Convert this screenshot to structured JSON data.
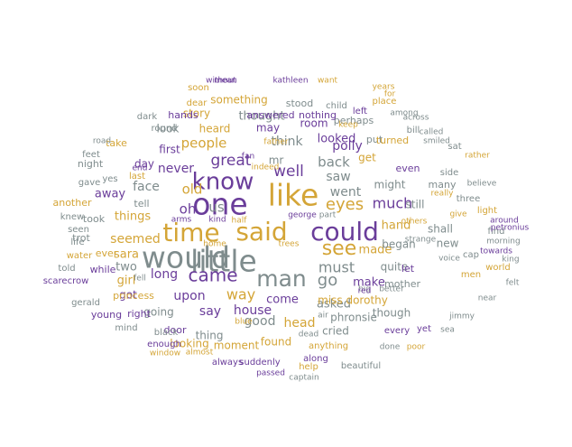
{
  "palette": {
    "purple": "#6a3d9a",
    "gold": "#d4a537",
    "gray": "#7f8c8d"
  },
  "words": [
    {
      "text": "would",
      "color": "gray"
    },
    {
      "text": "little",
      "color": "gray"
    },
    {
      "text": "one",
      "color": "purple"
    },
    {
      "text": "like",
      "color": "gold"
    },
    {
      "text": "time",
      "color": "gold"
    },
    {
      "text": "said",
      "color": "gold"
    },
    {
      "text": "could",
      "color": "purple"
    },
    {
      "text": "know",
      "color": "purple"
    },
    {
      "text": "man",
      "color": "gray"
    },
    {
      "text": "see",
      "color": "gold"
    },
    {
      "text": "came",
      "color": "purple"
    },
    {
      "text": "eyes",
      "color": "gold"
    },
    {
      "text": "go",
      "color": "gray"
    },
    {
      "text": "much",
      "color": "purple"
    },
    {
      "text": "must",
      "color": "gray"
    },
    {
      "text": "great",
      "color": "purple"
    },
    {
      "text": "well",
      "color": "purple"
    },
    {
      "text": "way",
      "color": "gold"
    },
    {
      "text": "us",
      "color": "gray"
    },
    {
      "text": "oh",
      "color": "purple"
    },
    {
      "text": "old",
      "color": "gold"
    },
    {
      "text": "people",
      "color": "gold"
    },
    {
      "text": "back",
      "color": "gray"
    },
    {
      "text": "saw",
      "color": "gray"
    },
    {
      "text": "went",
      "color": "gray"
    },
    {
      "text": "polly",
      "color": "purple"
    },
    {
      "text": "upon",
      "color": "purple"
    },
    {
      "text": "long",
      "color": "purple"
    },
    {
      "text": "say",
      "color": "purple"
    },
    {
      "text": "house",
      "color": "purple"
    },
    {
      "text": "seemed",
      "color": "gold"
    },
    {
      "text": "things",
      "color": "gold"
    },
    {
      "text": "come",
      "color": "purple"
    },
    {
      "text": "made",
      "color": "gold"
    },
    {
      "text": "hand",
      "color": "gold"
    },
    {
      "text": "think",
      "color": "gray"
    },
    {
      "text": "looked",
      "color": "purple"
    },
    {
      "text": "make",
      "color": "purple"
    },
    {
      "text": "asked",
      "color": "gray"
    },
    {
      "text": "good",
      "color": "gray"
    },
    {
      "text": "head",
      "color": "gold"
    },
    {
      "text": "face",
      "color": "gray"
    },
    {
      "text": "never",
      "color": "purple"
    },
    {
      "text": "sara",
      "color": "gold"
    },
    {
      "text": "two",
      "color": "gray"
    },
    {
      "text": "girl",
      "color": "gold"
    },
    {
      "text": "away",
      "color": "purple"
    },
    {
      "text": "thought",
      "color": "gray"
    },
    {
      "text": "may",
      "color": "purple"
    },
    {
      "text": "heard",
      "color": "gold"
    },
    {
      "text": "first",
      "color": "purple"
    },
    {
      "text": "mr",
      "color": "gray"
    },
    {
      "text": "get",
      "color": "gold"
    },
    {
      "text": "might",
      "color": "gray"
    },
    {
      "text": "still",
      "color": "gray"
    },
    {
      "text": "quite",
      "color": "gray"
    },
    {
      "text": "began",
      "color": "gray"
    },
    {
      "text": "let",
      "color": "purple"
    },
    {
      "text": "new",
      "color": "gray"
    },
    {
      "text": "shall",
      "color": "gray"
    },
    {
      "text": "miss dorothy",
      "color": "gold"
    },
    {
      "text": "phronsie",
      "color": "gray"
    },
    {
      "text": "found",
      "color": "gold"
    },
    {
      "text": "cried",
      "color": "gray"
    },
    {
      "text": "though",
      "color": "gray"
    },
    {
      "text": "mother",
      "color": "gray"
    },
    {
      "text": "going",
      "color": "gray"
    },
    {
      "text": "got",
      "color": "purple"
    },
    {
      "text": "thing",
      "color": "gray"
    },
    {
      "text": "moment",
      "color": "gold"
    },
    {
      "text": "door",
      "color": "purple"
    },
    {
      "text": "looking",
      "color": "gold"
    },
    {
      "text": "room",
      "color": "purple"
    },
    {
      "text": "perhaps",
      "color": "gray"
    },
    {
      "text": "put",
      "color": "gray"
    },
    {
      "text": "day",
      "color": "purple"
    },
    {
      "text": "night",
      "color": "gray"
    },
    {
      "text": "tell",
      "color": "gray"
    },
    {
      "text": "took",
      "color": "gray"
    },
    {
      "text": "trot",
      "color": "gray"
    },
    {
      "text": "while",
      "color": "purple"
    },
    {
      "text": "ever",
      "color": "gold"
    },
    {
      "text": "another",
      "color": "gold"
    },
    {
      "text": "princess",
      "color": "gold"
    },
    {
      "text": "young",
      "color": "purple"
    },
    {
      "text": "right",
      "color": "purple"
    },
    {
      "text": "look",
      "color": "gray"
    },
    {
      "text": "take",
      "color": "gold"
    },
    {
      "text": "story",
      "color": "gold"
    },
    {
      "text": "something",
      "color": "gold"
    },
    {
      "text": "answered",
      "color": "purple"
    },
    {
      "text": "nothing",
      "color": "purple"
    },
    {
      "text": "turned",
      "color": "gold"
    },
    {
      "text": "even",
      "color": "purple"
    },
    {
      "text": "many",
      "color": "gray"
    },
    {
      "text": "always",
      "color": "purple"
    },
    {
      "text": "suddenly",
      "color": "purple"
    },
    {
      "text": "along",
      "color": "purple"
    },
    {
      "text": "anything",
      "color": "gold"
    },
    {
      "text": "every",
      "color": "purple"
    },
    {
      "text": "yet",
      "color": "purple"
    },
    {
      "text": "hands",
      "color": "purple"
    },
    {
      "text": "round",
      "color": "gray"
    },
    {
      "text": "dark",
      "color": "gray"
    },
    {
      "text": "dear",
      "color": "gold"
    },
    {
      "text": "stood",
      "color": "gray"
    },
    {
      "text": "child",
      "color": "gray"
    },
    {
      "text": "left",
      "color": "purple"
    },
    {
      "text": "place",
      "color": "gold"
    },
    {
      "text": "among",
      "color": "gray"
    },
    {
      "text": "bill",
      "color": "gray"
    },
    {
      "text": "sat",
      "color": "gray"
    },
    {
      "text": "side",
      "color": "gray"
    },
    {
      "text": "three",
      "color": "gray"
    },
    {
      "text": "light",
      "color": "gold"
    },
    {
      "text": "find",
      "color": "gray"
    },
    {
      "text": "cap",
      "color": "gray"
    },
    {
      "text": "world",
      "color": "gold"
    },
    {
      "text": "men",
      "color": "gold"
    },
    {
      "text": "jimmy",
      "color": "gray"
    },
    {
      "text": "gerald",
      "color": "gray"
    },
    {
      "text": "black",
      "color": "gray"
    },
    {
      "text": "enough",
      "color": "purple"
    },
    {
      "text": "mind",
      "color": "gray"
    },
    {
      "text": "yes",
      "color": "gray"
    },
    {
      "text": "last",
      "color": "gold"
    },
    {
      "text": "road",
      "color": "gray"
    },
    {
      "text": "feet",
      "color": "gray"
    },
    {
      "text": "gave",
      "color": "gray"
    },
    {
      "text": "knew",
      "color": "gray"
    },
    {
      "text": "seen",
      "color": "gray"
    },
    {
      "text": "life",
      "color": "gray"
    },
    {
      "text": "water",
      "color": "gold"
    },
    {
      "text": "told",
      "color": "gray"
    },
    {
      "text": "scarecrow",
      "color": "purple"
    },
    {
      "text": "done",
      "color": "gray"
    },
    {
      "text": "poor",
      "color": "gold"
    },
    {
      "text": "beautiful",
      "color": "gray"
    },
    {
      "text": "help",
      "color": "gold"
    },
    {
      "text": "passed",
      "color": "purple"
    },
    {
      "text": "captain",
      "color": "gray"
    },
    {
      "text": "window",
      "color": "gold"
    },
    {
      "text": "almost",
      "color": "gold"
    },
    {
      "text": "soon",
      "color": "gold"
    },
    {
      "text": "without",
      "color": "purple"
    },
    {
      "text": "mean",
      "color": "purple"
    },
    {
      "text": "kathleen",
      "color": "purple"
    },
    {
      "text": "want",
      "color": "gold"
    },
    {
      "text": "years",
      "color": "gold"
    },
    {
      "text": "for",
      "color": "gold"
    },
    {
      "text": "across",
      "color": "gray"
    },
    {
      "text": "called",
      "color": "gray"
    },
    {
      "text": "smiled",
      "color": "gray"
    },
    {
      "text": "rather",
      "color": "gold"
    },
    {
      "text": "believe",
      "color": "gray"
    },
    {
      "text": "around",
      "color": "purple"
    },
    {
      "text": "petronius",
      "color": "purple"
    },
    {
      "text": "morning",
      "color": "gray"
    },
    {
      "text": "towards",
      "color": "purple"
    },
    {
      "text": "king",
      "color": "gray"
    },
    {
      "text": "felt",
      "color": "gray"
    },
    {
      "text": "near",
      "color": "gray"
    },
    {
      "text": "sea",
      "color": "gray"
    },
    {
      "text": "voice",
      "color": "gray"
    },
    {
      "text": "better",
      "color": "gray"
    },
    {
      "text": "strange",
      "color": "gray"
    },
    {
      "text": "give",
      "color": "gold"
    },
    {
      "text": "others",
      "color": "gold"
    },
    {
      "text": "really",
      "color": "gold"
    },
    {
      "text": "big",
      "color": "gray"
    },
    {
      "text": "george",
      "color": "purple"
    },
    {
      "text": "part",
      "color": "gray"
    },
    {
      "text": "kind",
      "color": "purple"
    },
    {
      "text": "half",
      "color": "gold"
    },
    {
      "text": "home",
      "color": "gold"
    },
    {
      "text": "trees",
      "color": "gold"
    },
    {
      "text": "blue",
      "color": "gold"
    },
    {
      "text": "dead",
      "color": "gray"
    },
    {
      "text": "air",
      "color": "gray"
    },
    {
      "text": "red",
      "color": "purple"
    },
    {
      "text": "end",
      "color": "purple"
    },
    {
      "text": "fell",
      "color": "gray"
    },
    {
      "text": "father",
      "color": "gold"
    },
    {
      "text": "indeed",
      "color": "gold"
    },
    {
      "text": "fan",
      "color": "purple"
    },
    {
      "text": "keep",
      "color": "gold"
    },
    {
      "text": "arms",
      "color": "purple"
    },
    {
      "text": "wish",
      "color": "gray"
    },
    {
      "text": "lay",
      "color": "purple"
    },
    {
      "text": "work",
      "color": "gray"
    },
    {
      "text": "heart",
      "color": "gold"
    },
    {
      "text": "fair",
      "color": "purple"
    },
    {
      "text": "count",
      "color": "gray"
    },
    {
      "text": "aunt",
      "color": "gray"
    },
    {
      "text": "thou",
      "color": "gray"
    },
    {
      "text": "till",
      "color": "gray"
    }
  ]
}
